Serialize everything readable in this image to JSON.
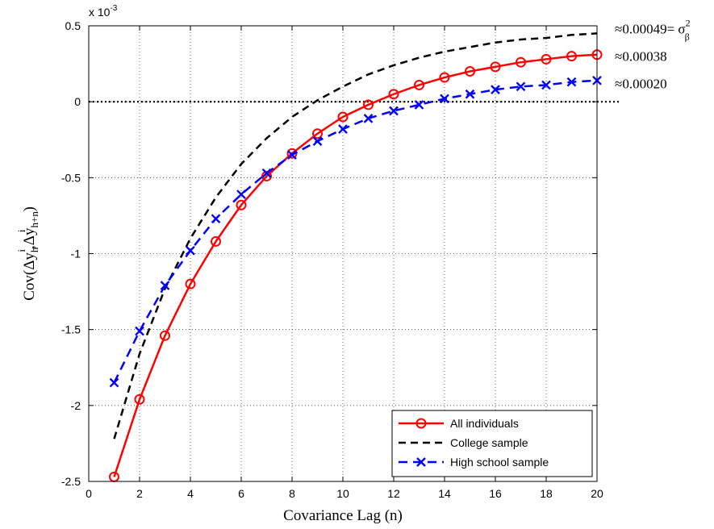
{
  "chart_data": {
    "type": "line",
    "exponent_label": "x 10",
    "exponent_power": "-3",
    "xlabel": "Covariance Lag (n)",
    "ylabel": {
      "prefix": "Cov(Δy",
      "sub1": "h",
      "sup1": "i",
      "mid": ",Δy",
      "sub2": "h+n",
      "sup2": "i",
      "suffix": ")"
    },
    "xlim": [
      0,
      20
    ],
    "ylim": [
      -2.5,
      0.5
    ],
    "xticks": [
      0,
      2,
      4,
      6,
      8,
      10,
      12,
      14,
      16,
      18,
      20
    ],
    "yticks": [
      -2.5,
      -2,
      -1.5,
      -1,
      -0.5,
      0,
      0.5
    ],
    "ytick_labels": [
      "-2.5",
      "-2",
      "-1.5",
      "-1",
      "-0.5",
      "0",
      "0.5"
    ],
    "grid": true,
    "legend_position": "bottom-right",
    "zero_line": {
      "y": 0,
      "style": "dotted",
      "color": "#000000"
    },
    "x": [
      1,
      2,
      3,
      4,
      5,
      6,
      7,
      8,
      9,
      10,
      11,
      12,
      13,
      14,
      15,
      16,
      17,
      18,
      19,
      20
    ],
    "series": [
      {
        "name": "All individuals",
        "color": "#ff0000",
        "line": "solid",
        "marker": "circle",
        "values": [
          -2.47,
          -1.96,
          -1.54,
          -1.2,
          -0.92,
          -0.68,
          -0.49,
          -0.34,
          -0.21,
          -0.1,
          -0.02,
          0.05,
          0.11,
          0.16,
          0.2,
          0.23,
          0.26,
          0.28,
          0.3,
          0.31
        ]
      },
      {
        "name": "College sample",
        "color": "#000000",
        "line": "dashed",
        "marker": "none",
        "values": [
          -2.22,
          -1.66,
          -1.23,
          -0.9,
          -0.63,
          -0.41,
          -0.24,
          -0.1,
          0.01,
          0.1,
          0.18,
          0.24,
          0.29,
          0.33,
          0.36,
          0.39,
          0.41,
          0.42,
          0.44,
          0.45
        ]
      },
      {
        "name": "High school sample",
        "color": "#0000ff",
        "line": "dashed",
        "marker": "x",
        "values": [
          -1.85,
          -1.51,
          -1.21,
          -0.98,
          -0.77,
          -0.61,
          -0.47,
          -0.35,
          -0.26,
          -0.18,
          -0.11,
          -0.06,
          -0.02,
          0.02,
          0.05,
          0.08,
          0.1,
          0.11,
          0.13,
          0.14
        ]
      }
    ],
    "annotations": [
      {
        "text": "≈0.00049= σ",
        "sup": "2",
        "sub": "β",
        "y": 0.45
      },
      {
        "text": "≈0.00038",
        "y": 0.3
      },
      {
        "text": "≈0.00020",
        "y": 0.11
      }
    ]
  }
}
